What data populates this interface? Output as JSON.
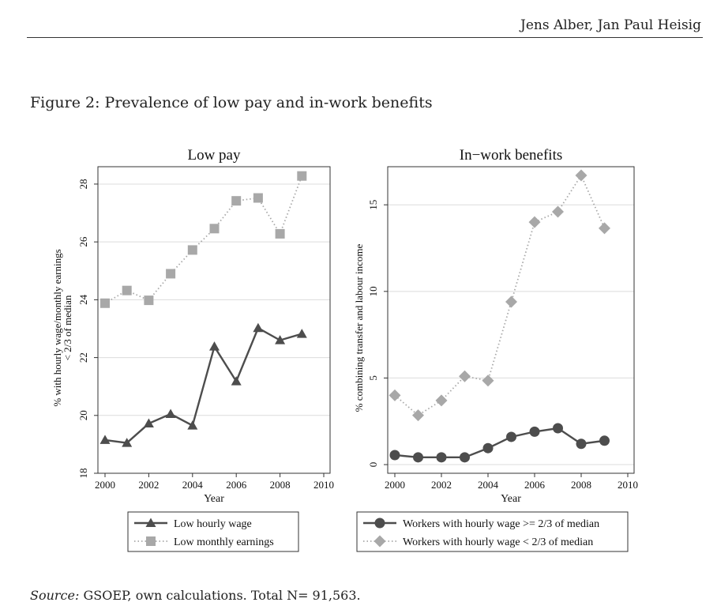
{
  "header": {
    "author": "Jens Alber, Jan Paul Heisig"
  },
  "figure": {
    "title": "Figure 2: Prevalence of low pay and in-work benefits"
  },
  "source": {
    "label": "Source:",
    "text": "GSOEP, own calculations. Total N= 91,563."
  },
  "chart_data": [
    {
      "type": "line",
      "title": "Low pay",
      "xlabel": "Year",
      "ylabel": "% with hourly wage/monthly earnings < 2/3 of median",
      "ylabel_lines": [
        "% with hourly wage/monthly earnings",
        "< 2/3 of median"
      ],
      "xlim": [
        2000,
        2010
      ],
      "ylim": [
        18,
        28.6
      ],
      "xticks": [
        2000,
        2002,
        2004,
        2006,
        2008,
        2010
      ],
      "yticks": [
        18,
        20,
        22,
        24,
        26,
        28
      ],
      "grid": true,
      "x": [
        2000,
        2001,
        2002,
        2003,
        2004,
        2005,
        2006,
        2007,
        2008,
        2009
      ],
      "series": [
        {
          "name": "Low hourly wage",
          "marker": "triangle",
          "style": "solid",
          "color": "#4d4d4d",
          "values": [
            19.15,
            19.05,
            19.72,
            20.05,
            19.65,
            22.38,
            21.18,
            23.02,
            22.6,
            22.82
          ]
        },
        {
          "name": "Low monthly earnings",
          "marker": "square",
          "style": "dotted",
          "color": "#a8a8a8",
          "values": [
            23.88,
            24.32,
            23.98,
            24.9,
            25.72,
            26.46,
            27.42,
            27.52,
            26.28,
            28.28
          ]
        }
      ],
      "legend": "below"
    },
    {
      "type": "line",
      "title": "In−work benefits",
      "xlabel": "Year",
      "ylabel": "% combining transfer and labour income",
      "ylabel_lines": [
        "% combining transfer and labour income"
      ],
      "xlim": [
        2000,
        2010
      ],
      "ylim": [
        -0.5,
        17.2
      ],
      "xticks": [
        2000,
        2002,
        2004,
        2006,
        2008,
        2010
      ],
      "yticks": [
        0,
        5,
        10,
        15
      ],
      "grid": true,
      "x": [
        2000,
        2001,
        2002,
        2003,
        2004,
        2005,
        2006,
        2007,
        2008,
        2009
      ],
      "series": [
        {
          "name": "Workers with hourly wage >= 2/3 of median",
          "marker": "circle",
          "style": "solid",
          "color": "#4d4d4d",
          "values": [
            0.55,
            0.42,
            0.42,
            0.42,
            0.95,
            1.6,
            1.9,
            2.1,
            1.2,
            1.38
          ]
        },
        {
          "name": "Workers with hourly wage < 2/3 of median",
          "marker": "diamond",
          "style": "dotted",
          "color": "#a8a8a8",
          "values": [
            4.0,
            2.85,
            3.7,
            5.1,
            4.85,
            9.4,
            14.0,
            14.6,
            16.7,
            13.65
          ]
        }
      ],
      "legend": "below"
    }
  ]
}
